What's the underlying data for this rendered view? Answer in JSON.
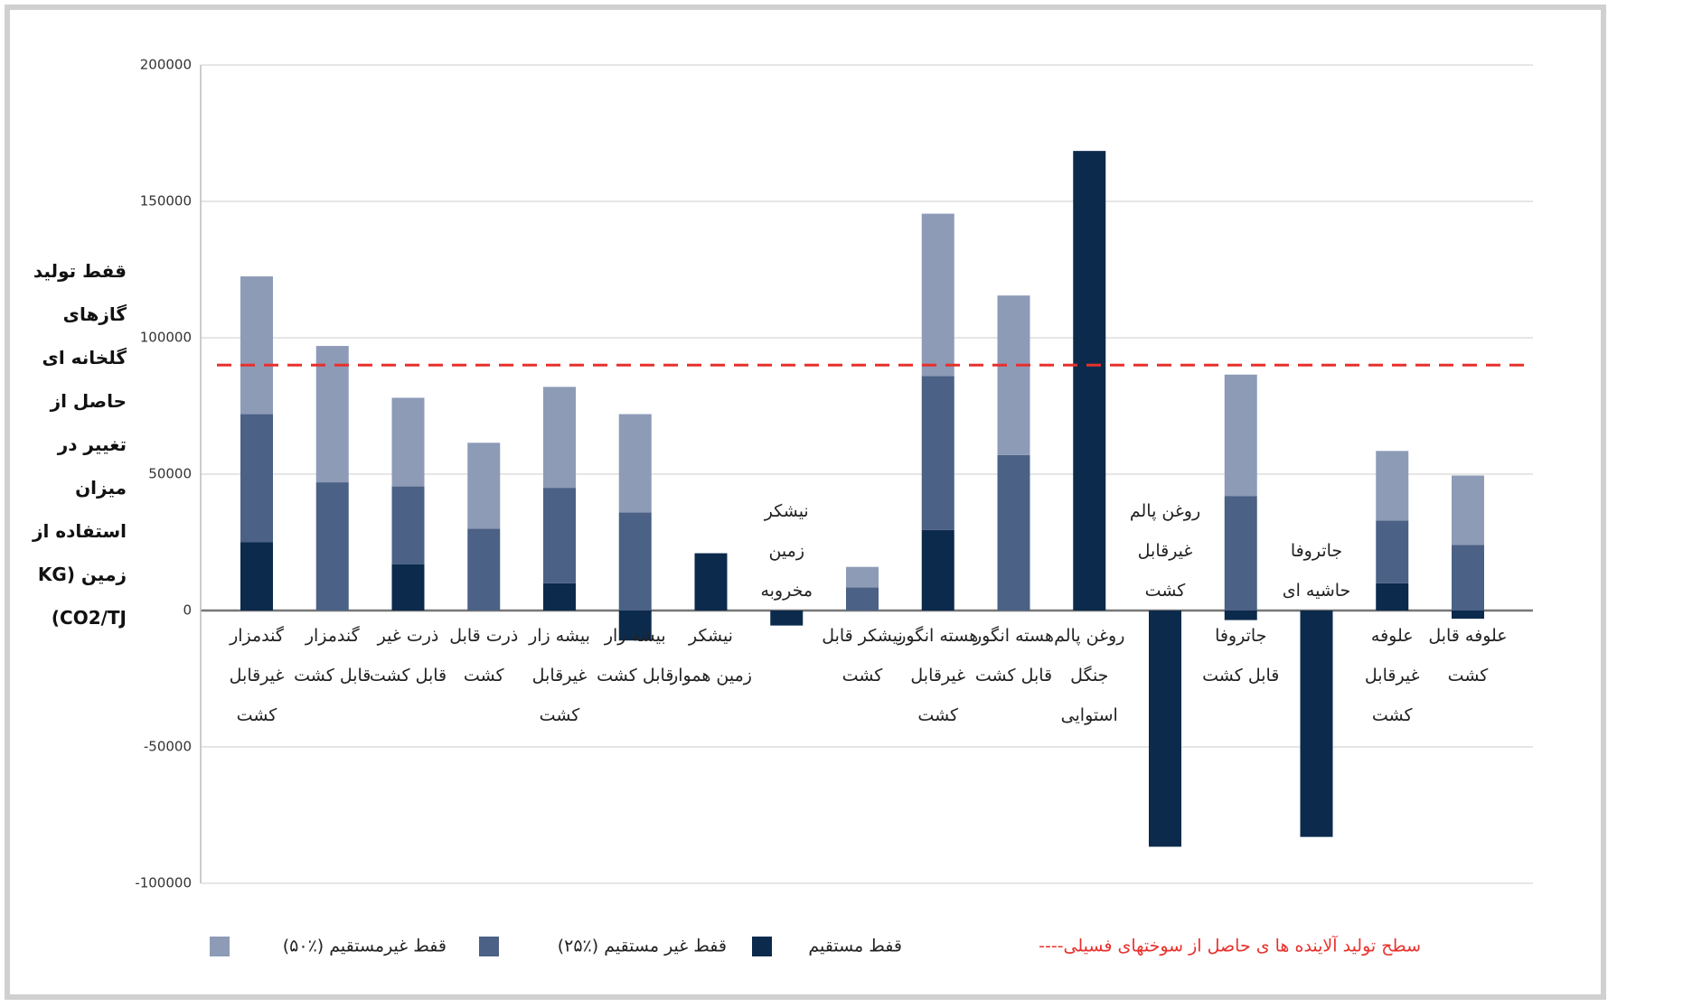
{
  "chart_data": {
    "type": "stacked_bar",
    "y_label": "قفط تولید گازهای گلخانه ای حاصل از تغییر در میزان استفاده از زمین (KG CO2/TJ)",
    "categories": [
      "گندمزار غیرقابل کشت",
      "گندمزار قابل کشت",
      "ذرت غیر قابل کشت",
      "ذرت قابل کشت",
      "بیشه زار غیرقابل کشت",
      "بیشه زار قابل کشت",
      "نیشکر زمین هموار",
      "نیشکر زمین مخروبه",
      "نیشکر قابل کشت",
      "هسته انگور غیرقابل کشت",
      "هسته انگور قابل کشت",
      "روغن پالم جنگل استوایی",
      "روغن پالم غیرقابل کشت",
      "جاتروفا قابل کشت",
      "جاتروفا حاشیه ای",
      "علوفه غیرقابل کشت",
      "علوفه قابل کشت"
    ],
    "series": [
      {
        "name": "قفط مستقیم",
        "color": "#0c2a4c",
        "values": [
          25000,
          0,
          17000,
          0,
          10000,
          -11000,
          21000,
          -5500,
          0,
          29500,
          0,
          168500,
          -86600,
          -3500,
          -83000,
          10000,
          -3000
        ]
      },
      {
        "name": "قفط غیر مستقیم (٪۲۵)",
        "color": "#4b6185",
        "values": [
          47000,
          47000,
          28500,
          30000,
          35000,
          36000,
          0,
          0,
          8500,
          56500,
          57000,
          0,
          0,
          42000,
          0,
          23000,
          24000
        ]
      },
      {
        "name": "قفط غیرمستقیم (٪۵۰)",
        "color": "#8d9bb7",
        "values": [
          50500,
          50000,
          32500,
          31500,
          37000,
          36000,
          0,
          0,
          7500,
          59500,
          58500,
          0,
          0,
          44500,
          0,
          25500,
          25500
        ]
      }
    ],
    "reference_line": {
      "value": 90000,
      "label": "سطح تولید آلاینده ها ی حاصل از سوختهای فسیلی----",
      "color": "#e8302c"
    },
    "ylim": [
      -100000,
      200000
    ],
    "yticks": [
      -100000,
      -50000,
      0,
      50000,
      100000,
      150000,
      200000
    ],
    "grid": true
  }
}
